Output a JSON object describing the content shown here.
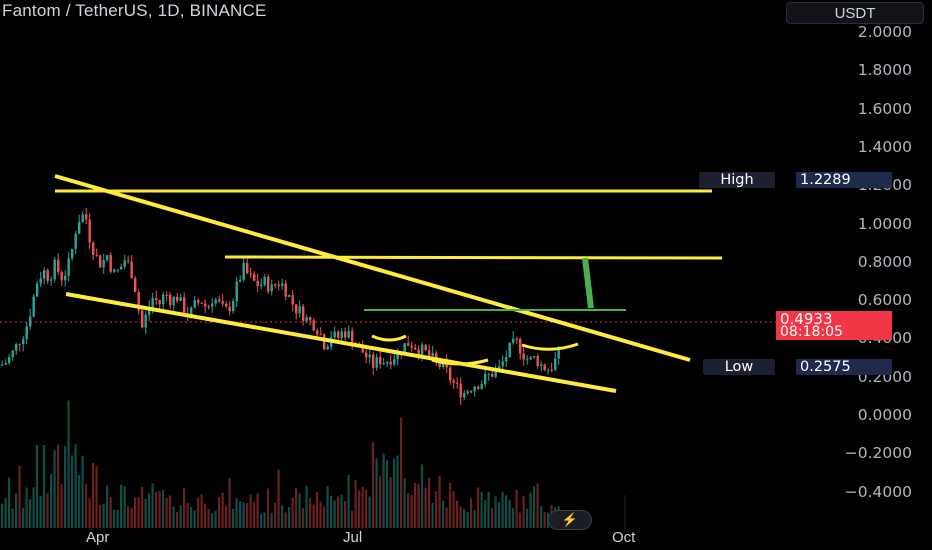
{
  "header": {
    "title": "Fantom / TetherUS, 1D, BINANCE",
    "currency": "USDT"
  },
  "price_axis": {
    "ticks": [
      "2.0000",
      "1.8000",
      "1.6000",
      "1.4000",
      "1.2000",
      "1.0000",
      "0.8000",
      "0.6000",
      "0.4000",
      "0.2000",
      "0.0000",
      "−0.2000",
      "−0.4000"
    ]
  },
  "time_axis": {
    "labels": [
      "Apr",
      "Jul",
      "Oct"
    ]
  },
  "high_tag": {
    "label": "High",
    "value": "1.2289"
  },
  "low_tag": {
    "label": "Low",
    "value": "0.2575"
  },
  "last_price": {
    "value": "0.4933",
    "countdown": "08:18:05",
    "color": "#f23645"
  },
  "colors": {
    "background": "#000000",
    "up_candle": "#26a69a",
    "down_candle": "#ef5350",
    "drawing_yellow": "#ffeb3b",
    "drawing_green": "#4caf50"
  },
  "icons": {
    "replay": "lightning-icon"
  },
  "chart_data": {
    "type": "candlestick",
    "symbol": "Fantom / TetherUS",
    "interval": "1D",
    "exchange": "BINANCE",
    "ylim": [
      -0.4,
      2.0
    ],
    "price_path": [
      [
        0,
        0.42
      ],
      [
        6,
        0.44
      ],
      [
        12,
        0.49
      ],
      [
        18,
        0.55
      ],
      [
        24,
        0.6
      ],
      [
        30,
        0.72
      ],
      [
        36,
        0.86
      ],
      [
        42,
        0.92
      ],
      [
        48,
        0.88
      ],
      [
        54,
        0.95
      ],
      [
        60,
        0.88
      ],
      [
        66,
        0.92
      ],
      [
        72,
        1.05
      ],
      [
        76,
        1.18
      ],
      [
        80,
        1.2
      ],
      [
        84,
        1.22
      ],
      [
        88,
        1.1
      ],
      [
        94,
        1.0
      ],
      [
        100,
        0.95
      ],
      [
        106,
        1.0
      ],
      [
        112,
        0.9
      ],
      [
        118,
        0.92
      ],
      [
        124,
        0.98
      ],
      [
        130,
        0.92
      ],
      [
        136,
        0.78
      ],
      [
        140,
        0.6
      ],
      [
        146,
        0.7
      ],
      [
        152,
        0.78
      ],
      [
        158,
        0.74
      ],
      [
        164,
        0.8
      ],
      [
        170,
        0.76
      ],
      [
        176,
        0.78
      ],
      [
        182,
        0.72
      ],
      [
        188,
        0.68
      ],
      [
        194,
        0.74
      ],
      [
        200,
        0.76
      ],
      [
        206,
        0.72
      ],
      [
        212,
        0.78
      ],
      [
        218,
        0.74
      ],
      [
        224,
        0.7
      ],
      [
        230,
        0.74
      ],
      [
        236,
        0.84
      ],
      [
        242,
        0.93
      ],
      [
        246,
        0.9
      ],
      [
        252,
        0.86
      ],
      [
        258,
        0.84
      ],
      [
        264,
        0.86
      ],
      [
        270,
        0.82
      ],
      [
        276,
        0.86
      ],
      [
        282,
        0.84
      ],
      [
        288,
        0.78
      ],
      [
        294,
        0.72
      ],
      [
        300,
        0.7
      ],
      [
        306,
        0.66
      ],
      [
        312,
        0.64
      ],
      [
        318,
        0.6
      ],
      [
        324,
        0.52
      ],
      [
        330,
        0.58
      ],
      [
        336,
        0.56
      ],
      [
        342,
        0.6
      ],
      [
        348,
        0.58
      ],
      [
        354,
        0.54
      ],
      [
        360,
        0.5
      ],
      [
        366,
        0.46
      ],
      [
        372,
        0.42
      ],
      [
        378,
        0.45
      ],
      [
        384,
        0.44
      ],
      [
        390,
        0.46
      ],
      [
        396,
        0.48
      ],
      [
        402,
        0.52
      ],
      [
        408,
        0.54
      ],
      [
        414,
        0.52
      ],
      [
        420,
        0.5
      ],
      [
        426,
        0.48
      ],
      [
        432,
        0.45
      ],
      [
        438,
        0.42
      ],
      [
        444,
        0.4
      ],
      [
        450,
        0.34
      ],
      [
        456,
        0.3
      ],
      [
        462,
        0.27
      ],
      [
        468,
        0.3
      ],
      [
        474,
        0.32
      ],
      [
        480,
        0.33
      ],
      [
        486,
        0.36
      ],
      [
        492,
        0.38
      ],
      [
        498,
        0.4
      ],
      [
        504,
        0.46
      ],
      [
        510,
        0.52
      ],
      [
        516,
        0.54
      ],
      [
        522,
        0.48
      ],
      [
        528,
        0.44
      ],
      [
        534,
        0.46
      ],
      [
        540,
        0.42
      ],
      [
        546,
        0.4
      ],
      [
        552,
        0.42
      ],
      [
        558,
        0.49
      ]
    ],
    "volume_heights": [
      0.25,
      0.18,
      0.32,
      0.2,
      0.28,
      0.35,
      0.22,
      0.4,
      0.3,
      0.26,
      0.48,
      0.33,
      0.58,
      0.44,
      0.38,
      0.62,
      0.7,
      0.52,
      0.46,
      0.9,
      0.66,
      0.55,
      0.48,
      0.4,
      0.36,
      0.3,
      0.44,
      0.38,
      0.32,
      0.28,
      0.34,
      0.3,
      0.26,
      0.22,
      0.28,
      0.24,
      0.2,
      0.26,
      0.22,
      0.18,
      0.24,
      0.2,
      0.3,
      0.26,
      0.22,
      0.28,
      0.24,
      0.2,
      0.18,
      0.24,
      0.22,
      0.2,
      0.26,
      0.22,
      0.18,
      0.2,
      0.24,
      0.22,
      0.3,
      0.26,
      0.2,
      0.18,
      0.22,
      0.2,
      0.24,
      0.28,
      0.22,
      0.2,
      0.18,
      0.24,
      0.22,
      0.26,
      0.3,
      0.2,
      0.18,
      0.16,
      0.22,
      0.2,
      0.24,
      0.62,
      0.28,
      0.22,
      0.2,
      0.18,
      0.22,
      0.2,
      0.26,
      0.24,
      0.2,
      0.22,
      0.28,
      0.24,
      0.2,
      0.36
    ]
  }
}
